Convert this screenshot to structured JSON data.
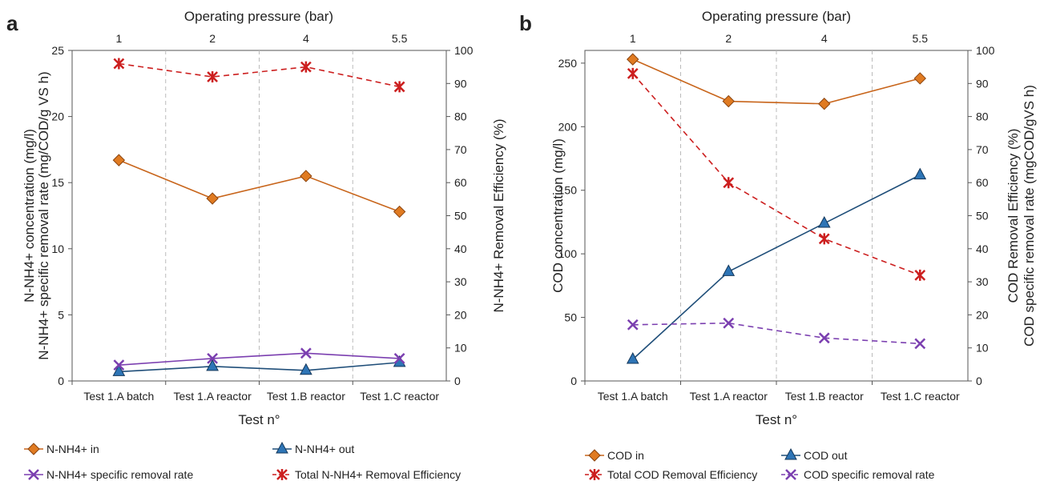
{
  "figure": {
    "panel_labels": [
      "a",
      "b"
    ],
    "xlabel": "Test n°",
    "top_xlabel": "Operating pressure (bar)",
    "categories": [
      "Test 1.A batch",
      "Test 1.A reactor",
      "Test 1.B reactor",
      "Test 1.C reactor"
    ],
    "pressure_ticks": [
      "1",
      "2",
      "4",
      "5.5"
    ]
  },
  "colors": {
    "in": "#c8651b",
    "out": "#1f4e79",
    "rate": "#7b3fb0",
    "efficiency": "#cc1f1f",
    "grid": "#bbbbbb"
  },
  "chart_data": [
    {
      "type": "line",
      "panel": "a",
      "categories": [
        "Test 1.A batch",
        "Test 1.A reactor",
        "Test 1.B reactor",
        "Test 1.C reactor"
      ],
      "top_axis": {
        "label": "Operating pressure (bar)",
        "ticks": [
          "1",
          "2",
          "4",
          "5.5"
        ]
      },
      "xlabel": "Test n°",
      "ylabel_lines": [
        "N-NH4+ concentration (mg/l)",
        "N-NH4+ specific removal rate (mg/COD/g VS h)"
      ],
      "ylim": [
        0,
        25
      ],
      "yticks": [
        0,
        5,
        10,
        15,
        20,
        25
      ],
      "y2label": "N-NH4+ Removal Efficiency (%)",
      "y2lim": [
        0,
        100
      ],
      "y2ticks": [
        0,
        10,
        20,
        30,
        40,
        50,
        60,
        70,
        80,
        90,
        100
      ],
      "series": [
        {
          "name": "N-NH4+ in",
          "axis": "left",
          "marker": "diamond",
          "line": "solid",
          "color": "#c8651b",
          "values": [
            16.7,
            13.8,
            15.5,
            12.8
          ]
        },
        {
          "name": "N-NH4+ out",
          "axis": "left",
          "marker": "triangle",
          "line": "solid",
          "color": "#1f4e79",
          "values": [
            0.7,
            1.1,
            0.8,
            1.4
          ]
        },
        {
          "name": "N-NH4+ specific removal rate",
          "axis": "left",
          "marker": "x",
          "line": "solid",
          "color": "#7b3fb0",
          "values": [
            1.2,
            1.7,
            2.1,
            1.7
          ]
        },
        {
          "name": "Total N-NH4+ Removal Efficiency",
          "axis": "right",
          "marker": "star",
          "line": "dashed",
          "color": "#cc1f1f",
          "values": [
            96,
            92,
            95,
            89
          ]
        }
      ]
    },
    {
      "type": "line",
      "panel": "b",
      "categories": [
        "Test 1.A batch",
        "Test 1.A reactor",
        "Test 1.B reactor",
        "Test 1.C reactor"
      ],
      "top_axis": {
        "label": "Operating pressure (bar)",
        "ticks": [
          "1",
          "2",
          "4",
          "5.5"
        ]
      },
      "xlabel": "Test n°",
      "ylabel_lines": [
        "COD concentration (mg/l)"
      ],
      "ylim": [
        0,
        260
      ],
      "yticks": [
        0,
        50,
        100,
        150,
        200,
        250
      ],
      "y2label_lines": [
        "COD Removal Efficiency (%)",
        "COD specific removal rate (mgCOD/gVS h)"
      ],
      "y2lim": [
        0,
        100
      ],
      "y2ticks": [
        0,
        10,
        20,
        30,
        40,
        50,
        60,
        70,
        80,
        90,
        100
      ],
      "series": [
        {
          "name": "COD in",
          "axis": "left",
          "marker": "diamond",
          "line": "solid",
          "color": "#c8651b",
          "values": [
            253,
            220,
            218,
            238
          ]
        },
        {
          "name": "COD out",
          "axis": "left",
          "marker": "triangle",
          "line": "solid",
          "color": "#1f4e79",
          "values": [
            17,
            86,
            124,
            162
          ]
        },
        {
          "name": "Total COD Removal Efficiency",
          "axis": "right",
          "marker": "star",
          "line": "dashed",
          "color": "#cc1f1f",
          "values": [
            93,
            60,
            43,
            32
          ]
        },
        {
          "name": "COD specific removal rate",
          "axis": "right",
          "marker": "x",
          "line": "dashed",
          "color": "#7b3fb0",
          "values": [
            17,
            17.5,
            13,
            11.3
          ]
        }
      ]
    }
  ]
}
